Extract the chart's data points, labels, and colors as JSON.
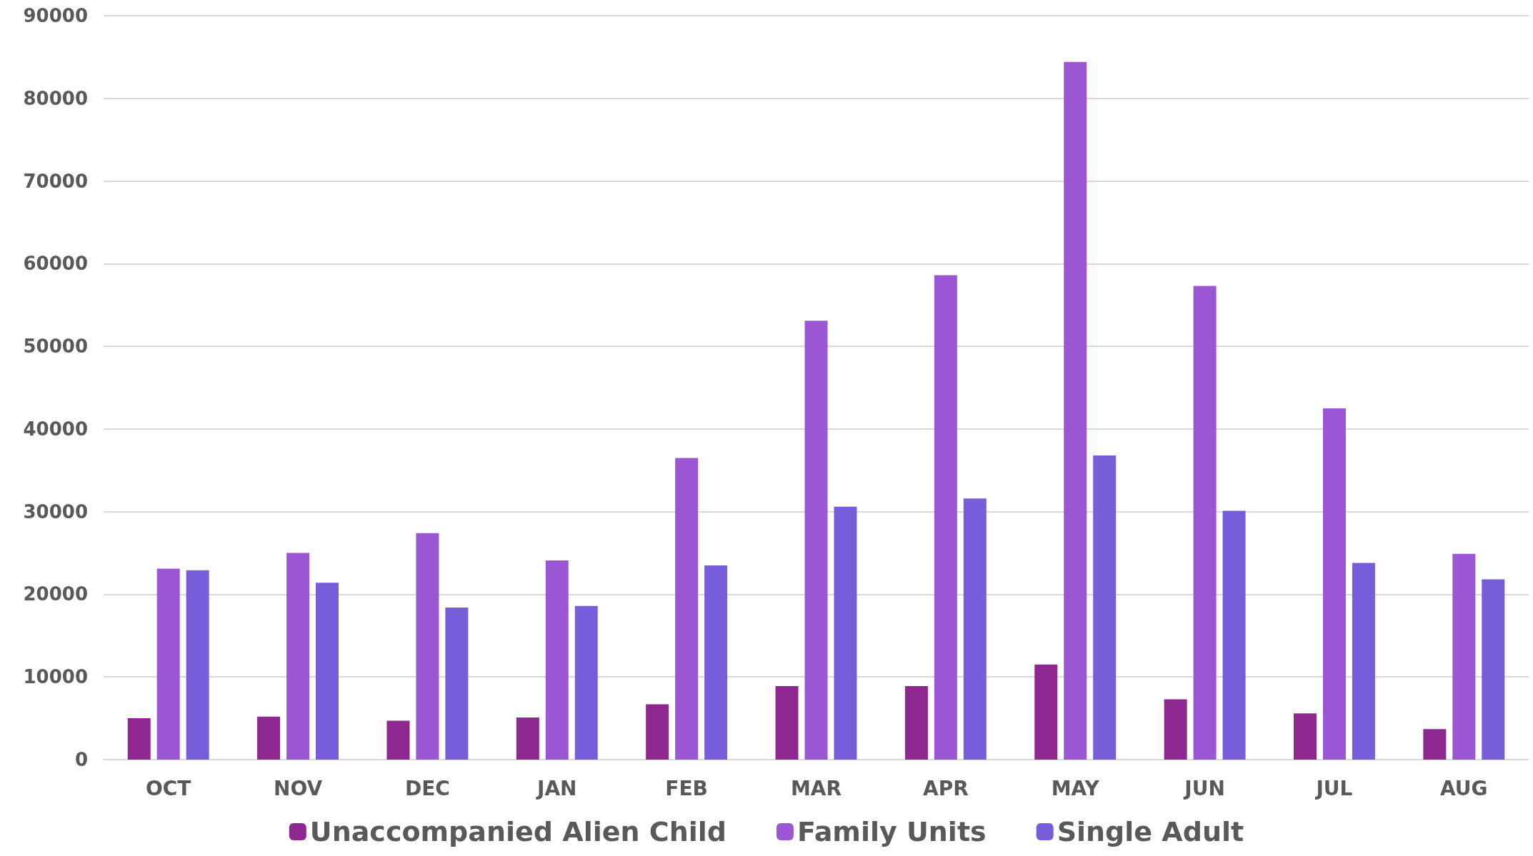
{
  "chart_data": {
    "type": "bar",
    "categories": [
      "OCT",
      "NOV",
      "DEC",
      "JAN",
      "FEB",
      "MAR",
      "APR",
      "MAY",
      "JUN",
      "JUL",
      "AUG"
    ],
    "series": [
      {
        "name": "Unaccompanied Alien Child",
        "color": "#8e278f",
        "values": [
          5000,
          5200,
          4700,
          5100,
          6700,
          8900,
          8900,
          11500,
          7300,
          5600,
          3700
        ]
      },
      {
        "name": "Family Units",
        "color": "#9b57d3",
        "values": [
          23100,
          25000,
          27400,
          24100,
          36500,
          53100,
          58600,
          84400,
          57300,
          42500,
          24900
        ]
      },
      {
        "name": "Single Adult",
        "color": "#775dd9",
        "values": [
          22900,
          21400,
          18400,
          18600,
          23500,
          30600,
          31600,
          36800,
          30100,
          23800,
          21800
        ]
      }
    ],
    "ylim": [
      0,
      90000
    ],
    "yticks": [
      0,
      10000,
      20000,
      30000,
      40000,
      50000,
      60000,
      70000,
      80000,
      90000
    ],
    "grid": "y",
    "legend": "bottom"
  }
}
